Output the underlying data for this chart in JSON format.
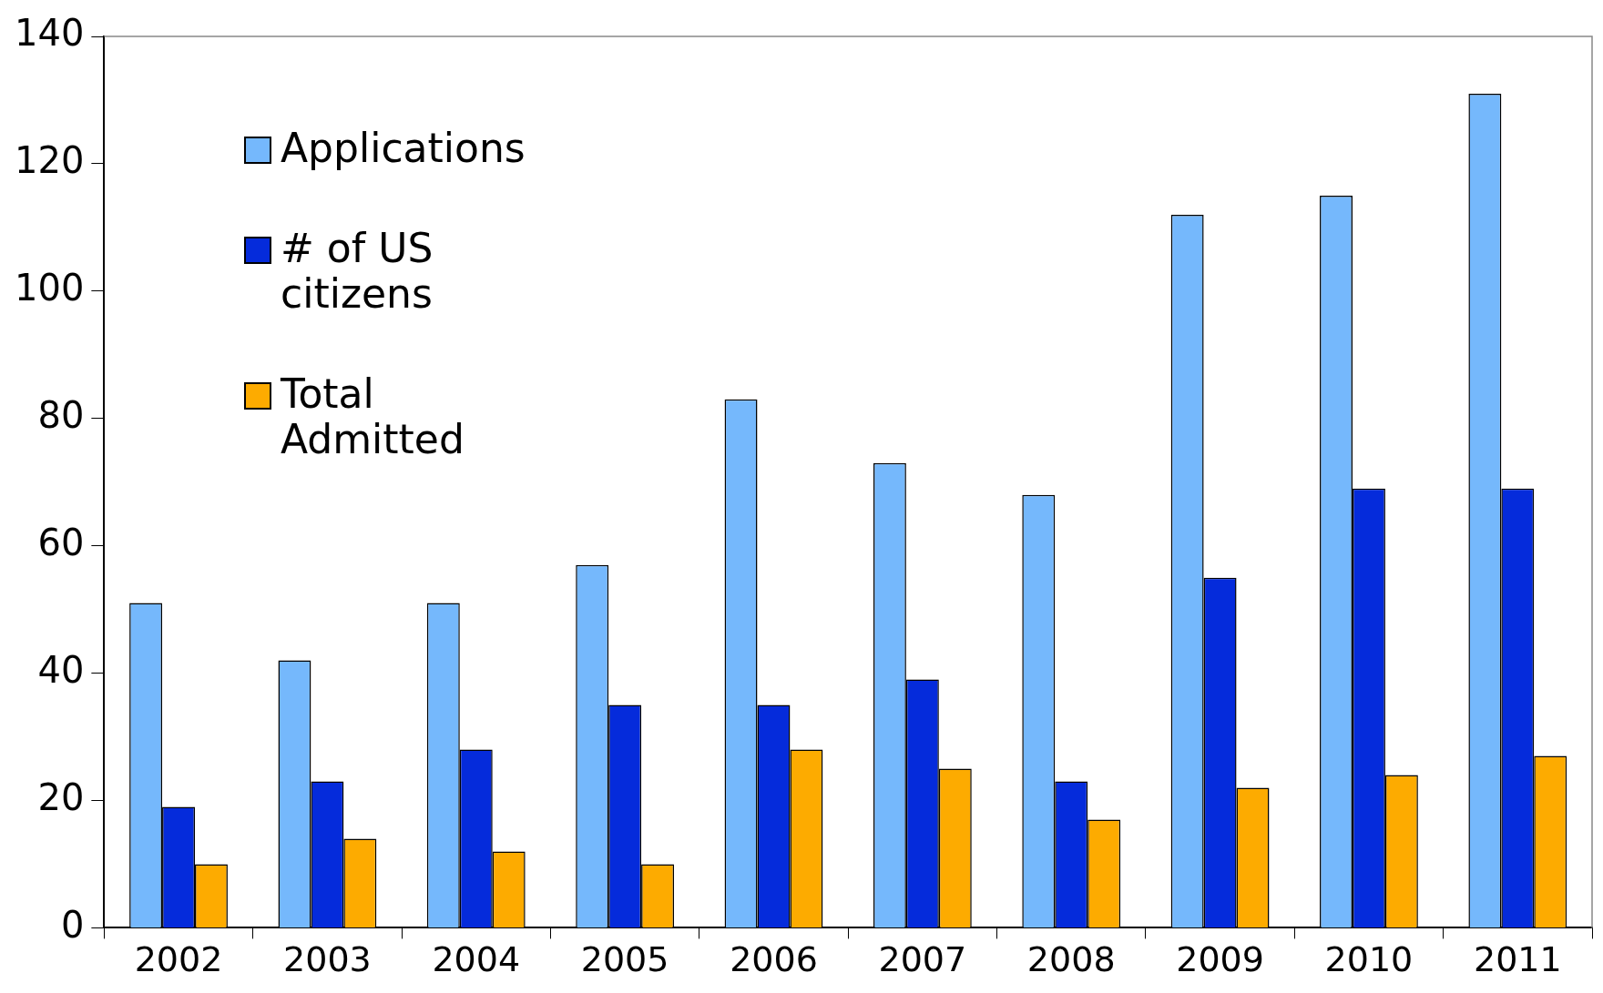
{
  "chart_data": {
    "type": "bar",
    "categories": [
      "2002",
      "2003",
      "2004",
      "2005",
      "2006",
      "2007",
      "2008",
      "2009",
      "2010",
      "2011"
    ],
    "series": [
      {
        "name": "Applications",
        "color": "#75b8fc",
        "values": [
          51,
          42,
          51,
          57,
          83,
          73,
          68,
          112,
          115,
          131
        ]
      },
      {
        "name": "# of US citizens",
        "color": "#052bdb",
        "values": [
          19,
          23,
          28,
          35,
          35,
          39,
          23,
          55,
          69,
          69
        ]
      },
      {
        "name": "Total Admitted",
        "color": "#fdab00",
        "values": [
          10,
          14,
          12,
          10,
          28,
          25,
          17,
          22,
          24,
          27
        ]
      }
    ],
    "ylim": [
      0,
      140
    ],
    "yticks": [
      0,
      20,
      40,
      60,
      80,
      100,
      120,
      140
    ],
    "grid": false,
    "legend": "top left"
  }
}
